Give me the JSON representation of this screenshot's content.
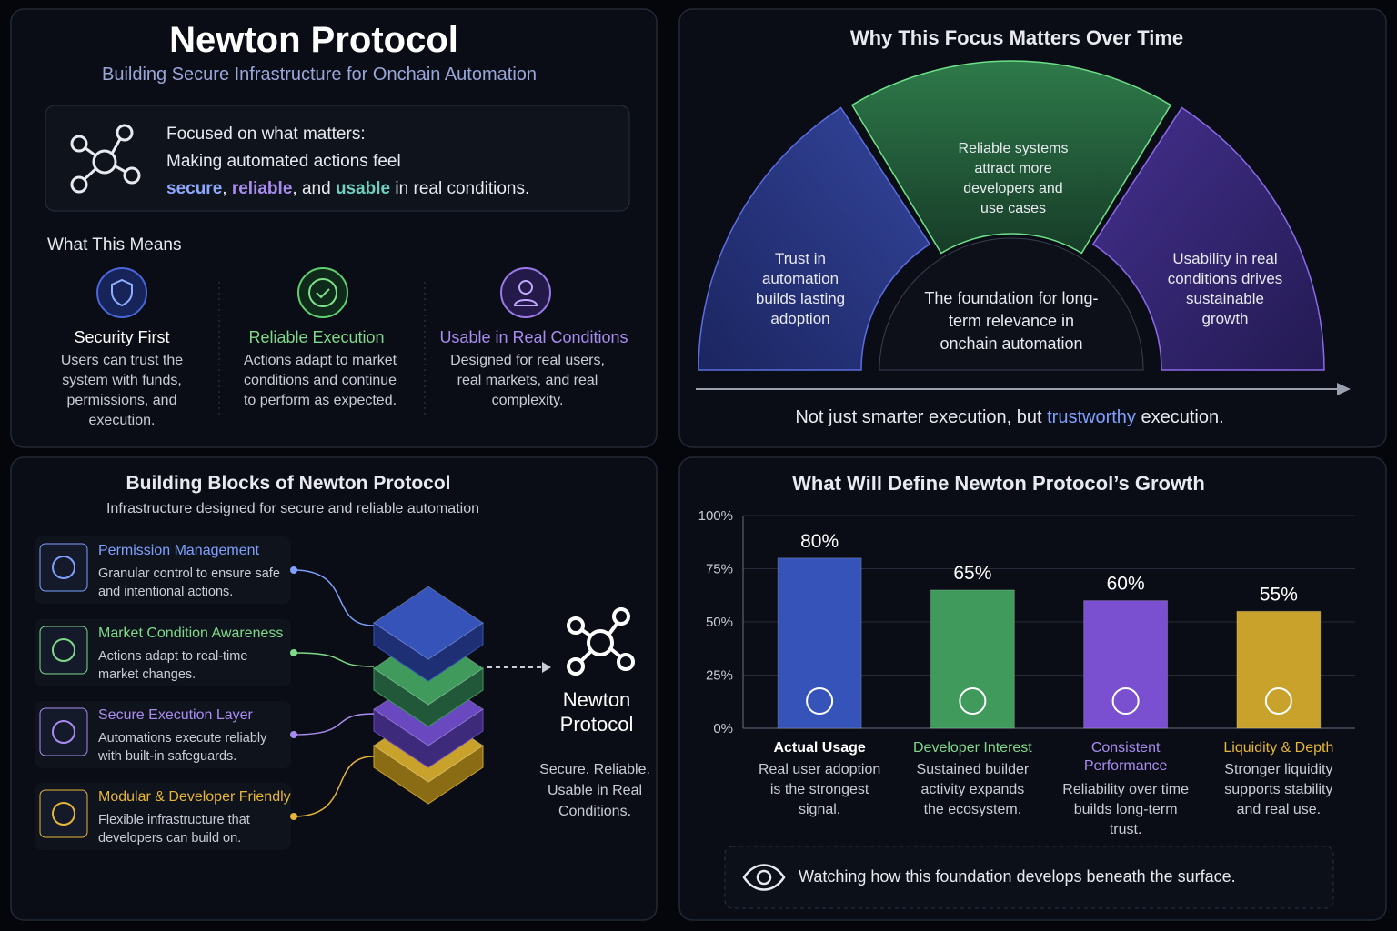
{
  "header": {
    "title": "Newton Protocol",
    "subtitle": "Building Secure Infrastructure for Onchain Automation"
  },
  "focus": {
    "heading": "Focused on what matters:",
    "line": "Making automated actions feel",
    "emphasis": [
      "secure",
      ", ",
      "reliable",
      ", and ",
      "usable",
      " in real conditions."
    ]
  },
  "means": {
    "heading": "What This Means",
    "items": [
      {
        "title": "Security First",
        "text": "Users can trust the system with funds, permissions, and execution."
      },
      {
        "title": "Reliable Execution",
        "text": "Actions adapt to market conditions and continue to perform as expected."
      },
      {
        "title": "Usable in Real Conditions",
        "text": "Designed for real users, real markets, and real complexity."
      }
    ]
  },
  "time": {
    "title": "Why This Focus Matters Over Time",
    "segments": [
      "Trust in automation builds lasting adoption",
      "Reliable systems attract more developers and use cases",
      "Usability in real conditions drives sustainable growth"
    ],
    "center": "The foundation for long-term relevance in onchain automation",
    "tagline": [
      "Not just smarter execution, but ",
      "trustworthy",
      " execution."
    ]
  },
  "blocks": {
    "title": "Building Blocks of Newton Protocol",
    "subtitle": "Infrastructure designed for secure and reliable automation",
    "items": [
      {
        "title": "Permission Management",
        "text": "Granular control to ensure safe and intentional actions."
      },
      {
        "title": "Market Condition Awareness",
        "text": "Actions adapt to real-time market changes."
      },
      {
        "title": "Secure Execution Layer",
        "text": "Automations execute reliably with built-in safeguards."
      },
      {
        "title": "Modular & Developer Friendly",
        "text": "Flexible infrastructure that developers can build on."
      }
    ],
    "hub": {
      "name": "Newton Protocol",
      "tagline": "Secure. Reliable. Usable in Real Conditions."
    }
  },
  "chart_data": {
    "type": "bar",
    "title": "What Will Define Newton Protocol’s Growth",
    "categories": [
      "Actual Usage",
      "Developer Interest",
      "Consistent Performance",
      "Liquidity & Depth"
    ],
    "values": [
      80,
      65,
      60,
      55
    ],
    "value_labels": [
      "80%",
      "65%",
      "60%",
      "55%"
    ],
    "descriptions": [
      "Real user adoption is the strongest signal.",
      "Sustained builder activity expands the ecosystem.",
      "Reliability over time builds long-term trust.",
      "Stronger liquidity supports stability and real use."
    ],
    "colors": [
      "#3553b8",
      "#3f9a5c",
      "#7a4fd0",
      "#c9a22c"
    ],
    "label_colors": [
      "#ffffff",
      "#7fd98a",
      "#a98cf0",
      "#e6b53a"
    ],
    "ylim": [
      0,
      100
    ],
    "yticks": [
      {
        "value": 0,
        "label": "0%"
      },
      {
        "value": 25,
        "label": "25%"
      },
      {
        "value": 50,
        "label": "50%"
      },
      {
        "value": 75,
        "label": "75%"
      },
      {
        "value": 100,
        "label": "100%"
      }
    ],
    "grid": true
  },
  "footer": "Watching how this foundation develops beneath the surface."
}
